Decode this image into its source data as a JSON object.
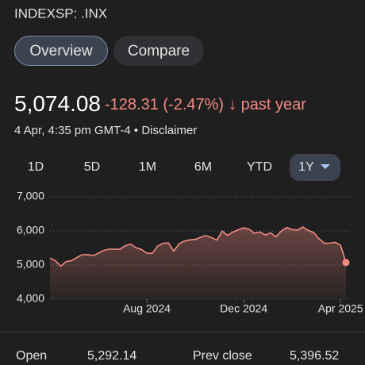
{
  "header": {
    "title": "INDEXSP: .INX"
  },
  "tabs": [
    "Overview",
    "Compare"
  ],
  "quote": {
    "price": "5,074.08",
    "change": "-128.31 (-2.47%)",
    "period": "↓ past year",
    "timestamp": "4 Apr, 4:35 pm GMT-4 • Disclaimer"
  },
  "ranges": [
    "1D",
    "5D",
    "1M",
    "6M",
    "YTD",
    "1Y"
  ],
  "chart_data": {
    "type": "line",
    "color": "#f28b82",
    "grid": true,
    "categories": [
      null,
      null,
      null,
      null,
      null,
      null,
      null,
      null,
      null,
      null,
      null,
      null,
      null,
      null,
      null,
      null,
      null,
      null,
      "Aug 2024",
      null,
      null,
      null,
      null,
      null,
      null,
      null,
      null,
      null,
      null,
      null,
      null,
      null,
      null,
      null,
      null,
      null,
      "Dec 2024",
      null,
      null,
      null,
      null,
      null,
      null,
      null,
      null,
      null,
      null,
      null,
      null,
      null,
      null,
      null,
      null,
      null,
      "Apr 2025",
      null
    ],
    "values": [
      5204,
      5123,
      4967,
      5099,
      5127,
      5222,
      5303,
      5304,
      5277,
      5346,
      5431,
      5464,
      5464,
      5460,
      5567,
      5615,
      5505,
      5459,
      5346,
      5344,
      5554,
      5634,
      5648,
      5408,
      5626,
      5703,
      5738,
      5751,
      5815,
      5864,
      5808,
      5728,
      5995,
      5870,
      5969,
      6032,
      6090,
      6051,
      5930,
      5970,
      5882,
      5942,
      5827,
      5997,
      6101,
      6040,
      6025,
      6114,
      6013,
      5954,
      5770,
      5638,
      5639,
      5667,
      5580,
      5074.08
    ],
    "ylim": [
      4000,
      7000
    ],
    "yticks": [
      {
        "value": 4000,
        "label": "4,000"
      },
      {
        "value": 5000,
        "label": "5,000"
      },
      {
        "value": 6000,
        "label": "6,000"
      },
      {
        "value": 7000,
        "label": "7,000"
      }
    ]
  },
  "stats": [
    {
      "label": "Open",
      "value": "5,292.14"
    },
    {
      "label": "Prev close",
      "value": "5,396.52"
    }
  ]
}
